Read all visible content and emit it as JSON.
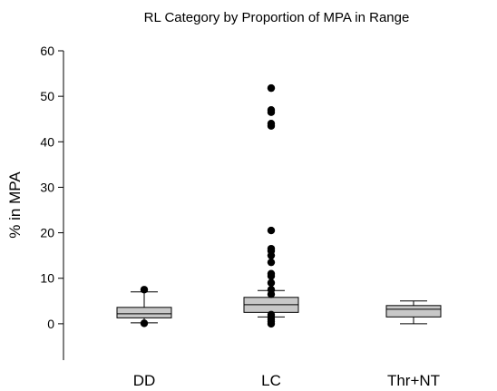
{
  "chart_data": {
    "type": "box",
    "title": "RL Category by Proportion of MPA in Range",
    "xlabel": "",
    "ylabel": "% in MPA",
    "ylim": [
      -8,
      60
    ],
    "yticks": [
      0,
      10,
      20,
      30,
      40,
      50,
      60
    ],
    "grid": false,
    "legend": "none",
    "box_fill": "#c8c8c8",
    "categories": [
      "DD",
      "LC",
      "Thr+NT"
    ],
    "boxes": [
      {
        "category": "DD",
        "whisker_low": 0.2,
        "q1": 1.3,
        "median": 2.2,
        "q3": 3.6,
        "whisker_high": 7.0,
        "outliers": [
          0.1,
          7.5
        ]
      },
      {
        "category": "LC",
        "whisker_low": 1.5,
        "q1": 2.5,
        "median": 4.2,
        "q3": 5.8,
        "whisker_high": 7.3,
        "outliers": [
          0.0,
          0.5,
          1.0,
          1.5,
          2.0,
          6.5,
          7.5,
          9.0,
          10.5,
          11.0,
          13.5,
          15.0,
          16.0,
          16.5,
          20.5,
          43.5,
          44.0,
          46.5,
          47.0,
          51.8
        ]
      },
      {
        "category": "Thr+NT",
        "whisker_low": 0.0,
        "q1": 1.5,
        "median": 3.2,
        "q3": 4.0,
        "whisker_high": 5.0,
        "outliers": []
      }
    ]
  }
}
